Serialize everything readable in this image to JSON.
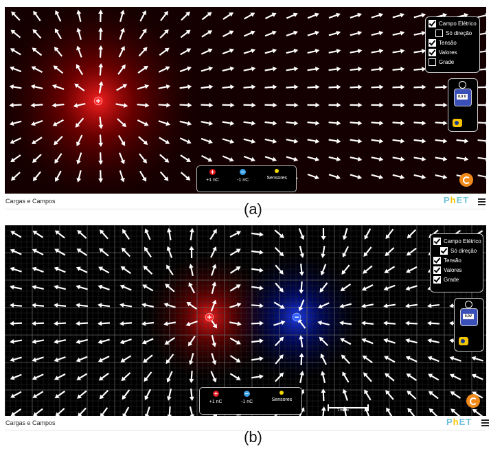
{
  "panels": [
    {
      "id": "a",
      "checkboxes": [
        {
          "label": "Campo Elétrico",
          "checked": true
        },
        {
          "label": "Só direção",
          "checked": false
        },
        {
          "label": "Tensão",
          "checked": true
        },
        {
          "label": "Valores",
          "checked": true
        },
        {
          "label": "Grade",
          "checked": false
        }
      ],
      "voltmeter_reading": "0.0 V",
      "toolbox": {
        "positive": "+1 nC",
        "negative": "-1 nC",
        "sensors": "Sensores"
      },
      "app_name": "Cargas e Campos",
      "caption": "(a)"
    },
    {
      "id": "b",
      "checkboxes": [
        {
          "label": "Campo Elétrico",
          "checked": true
        },
        {
          "label": "Só direção",
          "checked": true
        },
        {
          "label": "Tensão",
          "checked": true
        },
        {
          "label": "Valores",
          "checked": true
        },
        {
          "label": "Grade",
          "checked": true
        }
      ],
      "voltmeter_reading": "0.0V",
      "toolbox": {
        "positive": "+1 nC",
        "negative": "-1 nC",
        "sensors": "Sensores"
      },
      "scale_label": "1 metro",
      "app_name": "Cargas e Campos",
      "caption": "(b)"
    }
  ],
  "brand": {
    "p": "P",
    "h": "h",
    "e": "ET"
  },
  "colors": {
    "positive": "#e0181e",
    "negative": "#1a4dff",
    "reset": "#f08a1b",
    "sensor": "#f5d800"
  }
}
